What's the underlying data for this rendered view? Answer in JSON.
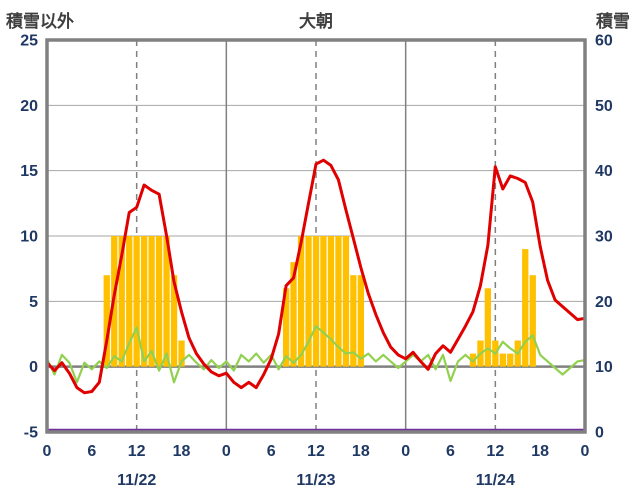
{
  "header": {
    "left_axis_title": "積雪以外",
    "title": "大朝",
    "right_axis_title": "積雪"
  },
  "chart_data": {
    "type": "mixed-line-bar",
    "title": "大朝",
    "left_axis": {
      "title": "積雪以外",
      "min": -5,
      "max": 25,
      "tick_values": [
        25,
        20,
        15,
        10,
        5,
        0,
        -5
      ],
      "tick_labels": [
        "25",
        "20",
        "15",
        "10",
        "5",
        "0",
        "-5"
      ]
    },
    "right_axis": {
      "title": "積雪",
      "min": 0,
      "max": 60,
      "tick_values": [
        60,
        50,
        40,
        30,
        20,
        10,
        0
      ],
      "tick_labels": [
        "60",
        "50",
        "40",
        "30",
        "20",
        "10",
        "0"
      ]
    },
    "x_axis": {
      "hours_total": 72,
      "tick_interval_hours": 6,
      "tick_labels": [
        "0",
        "6",
        "12",
        "18",
        "0",
        "6",
        "12",
        "18",
        "0",
        "6",
        "12",
        "18",
        "0"
      ],
      "date_labels": [
        {
          "label": "11/22",
          "hour": 12
        },
        {
          "label": "11/23",
          "hour": 36
        },
        {
          "label": "11/24",
          "hour": 60
        }
      ],
      "solid_gridline_hours": [
        24,
        48
      ],
      "dashed_gridline_hours": [
        12,
        36,
        60
      ]
    },
    "colors": {
      "frame": "#808080",
      "grid": "#A6A6A6",
      "zero_line": "#808080",
      "tick_text": "#1F3864",
      "title_text": "#3F3F3F"
    },
    "series": [
      {
        "name": "orange-bars",
        "type": "bar",
        "axis": "left",
        "color": "#FFC000",
        "points": [
          {
            "hour": 8,
            "value": 7
          },
          {
            "hour": 9,
            "value": 10
          },
          {
            "hour": 10,
            "value": 10
          },
          {
            "hour": 11,
            "value": 10
          },
          {
            "hour": 12,
            "value": 10
          },
          {
            "hour": 13,
            "value": 10
          },
          {
            "hour": 14,
            "value": 10
          },
          {
            "hour": 15,
            "value": 10
          },
          {
            "hour": 16,
            "value": 10
          },
          {
            "hour": 17,
            "value": 7
          },
          {
            "hour": 18,
            "value": 2
          },
          {
            "hour": 32,
            "value": 6
          },
          {
            "hour": 33,
            "value": 8
          },
          {
            "hour": 34,
            "value": 10
          },
          {
            "hour": 35,
            "value": 10
          },
          {
            "hour": 36,
            "value": 10
          },
          {
            "hour": 37,
            "value": 10
          },
          {
            "hour": 38,
            "value": 10
          },
          {
            "hour": 39,
            "value": 10
          },
          {
            "hour": 40,
            "value": 10
          },
          {
            "hour": 41,
            "value": 7
          },
          {
            "hour": 42,
            "value": 7
          },
          {
            "hour": 57,
            "value": 1
          },
          {
            "hour": 58,
            "value": 2
          },
          {
            "hour": 59,
            "value": 6
          },
          {
            "hour": 60,
            "value": 2
          },
          {
            "hour": 61,
            "value": 1
          },
          {
            "hour": 62,
            "value": 1
          },
          {
            "hour": 63,
            "value": 2
          },
          {
            "hour": 64,
            "value": 9
          },
          {
            "hour": 65,
            "value": 7
          }
        ]
      },
      {
        "name": "purple-line",
        "type": "line",
        "axis": "right",
        "color": "#7030A0",
        "stroke_width": 2.5,
        "constant_value": 0
      },
      {
        "name": "green-line",
        "type": "line",
        "axis": "left",
        "color": "#92D050",
        "stroke_width": 2.2,
        "values": [
          0.6,
          -0.6,
          0.9,
          0.3,
          -1.2,
          0.3,
          -0.2,
          0.4,
          -0.1,
          0.8,
          0.4,
          1.8,
          3.0,
          0.4,
          1.2,
          -0.3,
          1.0,
          -1.2,
          0.4,
          0.9,
          0.3,
          -0.2,
          0.5,
          -0.1,
          0.4,
          -0.3,
          0.9,
          0.4,
          1.0,
          0.3,
          0.9,
          -0.2,
          0.8,
          0.3,
          0.9,
          1.9,
          3.1,
          2.6,
          2.1,
          1.5,
          1.0,
          1.1,
          0.6,
          1.0,
          0.4,
          0.9,
          0.4,
          -0.1,
          0.4,
          0.9,
          0.4,
          0.9,
          -0.2,
          0.9,
          -1.1,
          0.4,
          0.9,
          0.4,
          1.0,
          1.4,
          1.0,
          1.9,
          1.4,
          1.0,
          1.9,
          2.4,
          0.9,
          0.4,
          -0.1,
          -0.6,
          -0.1,
          0.4,
          0.5
        ]
      },
      {
        "name": "red-line",
        "type": "line",
        "axis": "left",
        "color": "#E00000",
        "stroke_width": 3,
        "values": [
          0.3,
          -0.3,
          0.3,
          -0.5,
          -1.6,
          -2.0,
          -1.9,
          -1.2,
          2.0,
          5.5,
          8.5,
          11.8,
          12.2,
          13.9,
          13.5,
          13.2,
          10.0,
          6.5,
          4.2,
          2.2,
          1.0,
          0.2,
          -0.4,
          -0.7,
          -0.5,
          -1.2,
          -1.6,
          -1.2,
          -1.6,
          -0.6,
          0.6,
          2.5,
          6.2,
          6.8,
          9.5,
          12.5,
          15.5,
          15.8,
          15.4,
          14.3,
          12.0,
          9.8,
          7.6,
          5.6,
          4.0,
          2.6,
          1.5,
          0.9,
          0.6,
          1.1,
          0.4,
          -0.2,
          1.0,
          1.6,
          1.1,
          2.1,
          3.1,
          4.2,
          6.2,
          9.3,
          15.3,
          13.6,
          14.6,
          14.4,
          14.1,
          12.6,
          9.2,
          6.6,
          5.1,
          4.6,
          4.1,
          3.6,
          3.7
        ]
      }
    ]
  }
}
